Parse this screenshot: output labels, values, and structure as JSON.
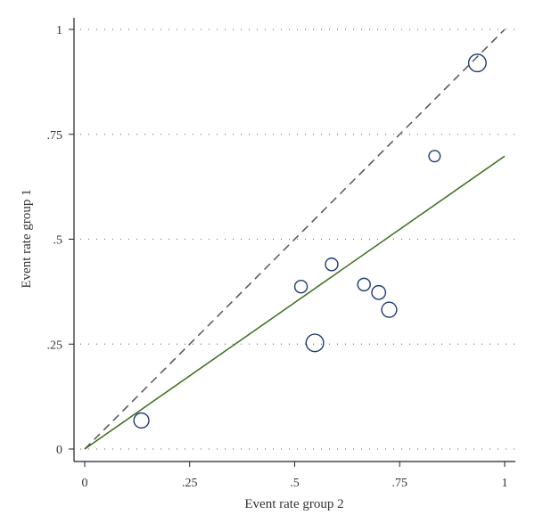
{
  "chart_data": {
    "type": "scatter",
    "title": "",
    "xlabel": "Event rate group 2",
    "ylabel": "Event rate group 1",
    "xlim": [
      0,
      1
    ],
    "ylim": [
      0,
      1
    ],
    "x_ticks": [
      {
        "value": 0,
        "label": "0"
      },
      {
        "value": 0.25,
        "label": ".25"
      },
      {
        "value": 0.5,
        "label": ".5"
      },
      {
        "value": 0.75,
        "label": ".75"
      },
      {
        "value": 1,
        "label": "1"
      }
    ],
    "y_ticks": [
      {
        "value": 0,
        "label": "0"
      },
      {
        "value": 0.25,
        "label": ".25"
      },
      {
        "value": 0.5,
        "label": ".5"
      },
      {
        "value": 0.75,
        "label": ".75"
      },
      {
        "value": 1,
        "label": "1"
      }
    ],
    "grid": "horizontal dotted",
    "points": [
      {
        "x": 0.135,
        "y": 0.068,
        "weight": 1.2
      },
      {
        "x": 0.515,
        "y": 0.387,
        "weight": 1.0
      },
      {
        "x": 0.548,
        "y": 0.253,
        "weight": 1.4
      },
      {
        "x": 0.588,
        "y": 0.44,
        "weight": 1.0
      },
      {
        "x": 0.665,
        "y": 0.392,
        "weight": 1.0
      },
      {
        "x": 0.7,
        "y": 0.373,
        "weight": 1.1
      },
      {
        "x": 0.725,
        "y": 0.332,
        "weight": 1.2
      },
      {
        "x": 0.833,
        "y": 0.698,
        "weight": 0.9
      },
      {
        "x": 0.935,
        "y": 0.92,
        "weight": 1.4
      }
    ],
    "reference_line": {
      "style": "dashed",
      "from": [
        0,
        0
      ],
      "to": [
        1,
        1
      ],
      "color": "#555555"
    },
    "fit_line": {
      "style": "solid",
      "from": [
        0,
        0
      ],
      "to": [
        1,
        0.698
      ],
      "color": "#3c6e1e"
    },
    "marker_color": "#1f3b73"
  }
}
